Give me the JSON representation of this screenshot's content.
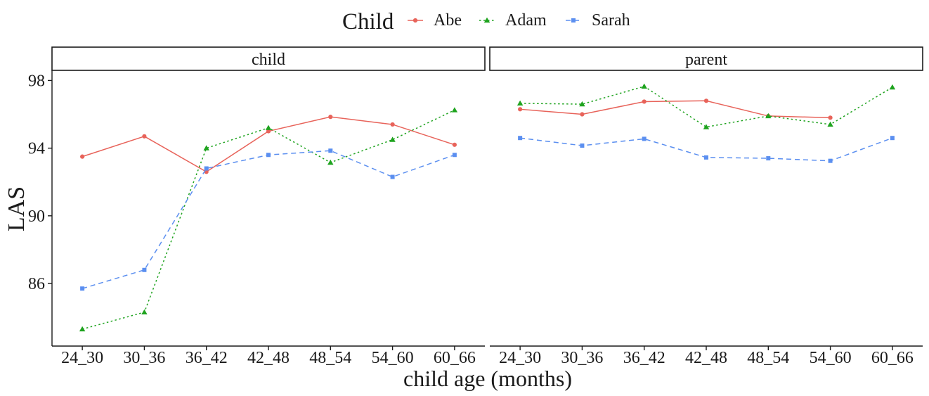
{
  "chart_data": {
    "type": "line",
    "legend": {
      "title": "Child",
      "position": "top"
    },
    "facets": [
      "child",
      "parent"
    ],
    "categories": [
      "24_30",
      "30_36",
      "36_42",
      "42_48",
      "48_54",
      "54_60",
      "60_66"
    ],
    "xlabel": "child age (months)",
    "ylabel": "LAS",
    "yticks": [
      86,
      90,
      94,
      98
    ],
    "ylim": [
      82.3,
      98.6
    ],
    "grid": false,
    "series": [
      {
        "name": "Abe",
        "color": "#e8635a",
        "marker": "circle",
        "dash": "solid",
        "values": {
          "child": [
            93.5,
            94.7,
            92.6,
            95.0,
            95.85,
            95.4,
            94.2
          ],
          "parent": [
            96.3,
            96.0,
            96.75,
            96.8,
            95.9,
            95.8,
            null
          ]
        }
      },
      {
        "name": "Adam",
        "color": "#1ea31e",
        "marker": "triangle",
        "dash": "dotted",
        "values": {
          "child": [
            83.3,
            84.3,
            94.0,
            95.2,
            93.15,
            94.5,
            96.25
          ],
          "parent": [
            96.65,
            96.6,
            97.65,
            95.25,
            95.9,
            95.4,
            97.6
          ]
        }
      },
      {
        "name": "Sarah",
        "color": "#5b8ff0",
        "marker": "square",
        "dash": "dashed",
        "values": {
          "child": [
            85.7,
            86.8,
            92.8,
            93.6,
            93.85,
            92.3,
            93.6
          ],
          "parent": [
            94.6,
            94.15,
            94.55,
            93.45,
            93.4,
            93.25,
            94.6
          ]
        }
      }
    ]
  }
}
